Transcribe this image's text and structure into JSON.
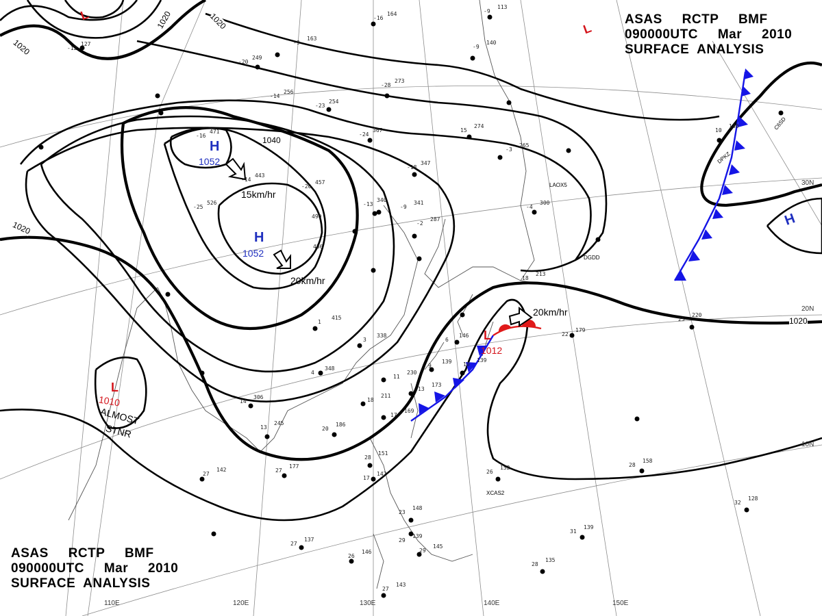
{
  "title": {
    "line1": "ASAS     RCTP     BMF",
    "line2": "090000UTC     Mar     2010",
    "line3": "SURFACE  ANALYSIS"
  },
  "isobars": [
    "1020",
    "1020",
    "1020",
    "1020",
    "1020",
    "1040"
  ],
  "pressure_centers": [
    {
      "type": "H",
      "value": "1052",
      "color": "#1f2fbf"
    },
    {
      "type": "H",
      "value": "1052",
      "color": "#1f2fbf"
    },
    {
      "type": "H",
      "value": "",
      "color": "#1f2fbf"
    },
    {
      "type": "L",
      "value": "1010",
      "color": "#d4141b",
      "note1": "ALMOST",
      "note2": "STNR"
    },
    {
      "type": "L",
      "value": "1012",
      "color": "#d4141b"
    },
    {
      "type": "L",
      "value": "",
      "color": "#d4141b"
    },
    {
      "type": "L",
      "value": "",
      "color": "#d4141b"
    }
  ],
  "movements": [
    "15km/hr",
    "20km/hr",
    "20km/hr"
  ],
  "longitudes": [
    "110E",
    "120E",
    "130E",
    "140E",
    "150E"
  ],
  "latitudes": [
    "30N",
    "20N",
    "10N"
  ],
  "stations": [
    {
      "t": "-9",
      "p": "163"
    },
    {
      "t": "-12",
      "p": "127"
    },
    {
      "t": "-20",
      "p": "249"
    },
    {
      "t": "-14",
      "p": "256"
    },
    {
      "t": "-23",
      "p": "254"
    },
    {
      "t": "-28",
      "p": "273"
    },
    {
      "t": "-16",
      "p": "164"
    },
    {
      "t": "-9",
      "p": "140"
    },
    {
      "t": "-16",
      "p": "471"
    },
    {
      "t": "-14",
      "p": "443"
    },
    {
      "t": "-20",
      "p": "457"
    },
    {
      "t": "-25",
      "p": "526"
    },
    {
      "t": "-24",
      "p": "367"
    },
    {
      "t": "-18",
      "p": "347"
    },
    {
      "t": "15",
      "p": "274"
    },
    {
      "t": "-3",
      "p": "265"
    },
    {
      "t": "-9",
      "p": "341"
    },
    {
      "t": "-13",
      "p": "340"
    },
    {
      "t": "-2",
      "p": "287"
    },
    {
      "t": "-4",
      "p": "300"
    },
    {
      "t": "490",
      "p": ""
    },
    {
      "t": "456",
      "p": ""
    },
    {
      "t": "14",
      "p": "306"
    },
    {
      "t": "4",
      "p": "348"
    },
    {
      "t": "11",
      "p": "230"
    },
    {
      "t": "13",
      "p": "173"
    },
    {
      "t": "6",
      "p": "146"
    },
    {
      "t": "9",
      "p": "139"
    },
    {
      "t": "10",
      "p": "139"
    },
    {
      "t": "17",
      "p": "169"
    },
    {
      "t": "20",
      "p": "186"
    },
    {
      "t": "18",
      "p": "211"
    },
    {
      "t": "1",
      "p": "415"
    },
    {
      "t": "3",
      "p": "338"
    },
    {
      "t": "13",
      "p": "245"
    },
    {
      "t": "27",
      "p": "177"
    },
    {
      "t": "28",
      "p": "151"
    },
    {
      "t": "17",
      "p": "142"
    },
    {
      "t": "26",
      "p": "152"
    },
    {
      "t": "28",
      "p": "158"
    },
    {
      "t": "25",
      "p": "220"
    },
    {
      "t": "22",
      "p": "179"
    },
    {
      "t": "18",
      "p": "213"
    },
    {
      "t": "10",
      "p": "180"
    },
    {
      "t": "27",
      "p": "142"
    },
    {
      "t": "27",
      "p": "137"
    },
    {
      "t": "29",
      "p": "139"
    },
    {
      "t": "23",
      "p": "148"
    },
    {
      "t": "28",
      "p": "135"
    },
    {
      "t": "31",
      "p": "139"
    },
    {
      "t": "32",
      "p": "128"
    },
    {
      "t": "27",
      "p": "143"
    },
    {
      "t": "26",
      "p": "146"
    },
    {
      "t": "29",
      "p": "145"
    },
    {
      "t": "-9",
      "p": "113"
    }
  ],
  "station_ids": [
    "LAOX5",
    "DPKZ",
    "DGDD",
    "XCAS2",
    "C6SD"
  ],
  "colors": {
    "high": "#1f2fbf",
    "low": "#d4141b",
    "cold_front": "#1515e6",
    "warm_front": "#e01a1a",
    "isobar": "#000000",
    "grid": "#8c8c8c"
  }
}
